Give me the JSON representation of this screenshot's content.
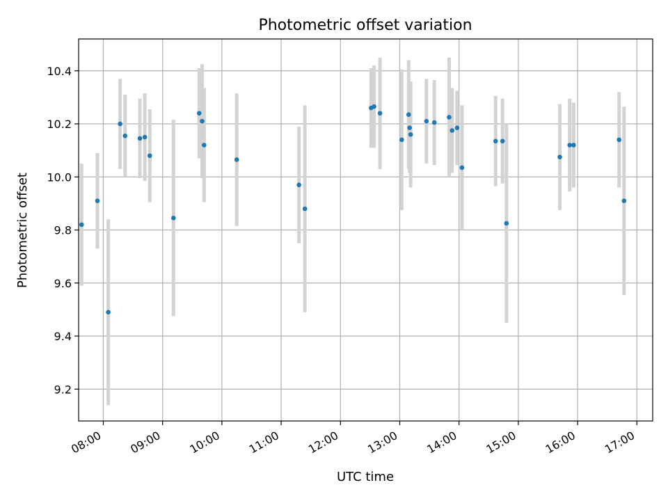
{
  "chart_data": {
    "type": "scatter",
    "title": "Photometric offset variation",
    "xlabel": "UTC time",
    "ylabel": "Photometric offset",
    "x_ticks": [
      "08:00",
      "09:00",
      "10:00",
      "11:00",
      "12:00",
      "13:00",
      "14:00",
      "15:00",
      "16:00",
      "17:00"
    ],
    "xlim": [
      "07:35",
      "17:16"
    ],
    "y_ticks": [
      "9.2",
      "9.4",
      "9.6",
      "9.8",
      "10.0",
      "10.2",
      "10.4"
    ],
    "ylim": [
      9.08,
      10.52
    ],
    "grid": true,
    "point_color": "#1f77b4",
    "errorbar_color": "#d3d3d3",
    "points": [
      {
        "x": "07:38",
        "y": 9.82,
        "err": 0.23
      },
      {
        "x": "07:54",
        "y": 9.91,
        "err": 0.18
      },
      {
        "x": "08:05",
        "y": 9.49,
        "err": 0.35
      },
      {
        "x": "08:17",
        "y": 10.2,
        "err": 0.17
      },
      {
        "x": "08:22",
        "y": 10.155,
        "err": 0.155
      },
      {
        "x": "08:37",
        "y": 10.145,
        "err": 0.15
      },
      {
        "x": "08:42",
        "y": 10.15,
        "err": 0.165
      },
      {
        "x": "08:47",
        "y": 10.08,
        "err": 0.175
      },
      {
        "x": "09:11",
        "y": 9.845,
        "err": 0.37
      },
      {
        "x": "09:37",
        "y": 10.24,
        "err": 0.17
      },
      {
        "x": "09:40",
        "y": 10.21,
        "err": 0.215
      },
      {
        "x": "09:42",
        "y": 10.12,
        "err": 0.215
      },
      {
        "x": "10:15",
        "y": 10.065,
        "err": 0.25
      },
      {
        "x": "11:18",
        "y": 9.97,
        "err": 0.22
      },
      {
        "x": "11:24",
        "y": 9.88,
        "err": 0.39
      },
      {
        "x": "12:31",
        "y": 10.26,
        "err": 0.15
      },
      {
        "x": "12:34",
        "y": 10.265,
        "err": 0.155
      },
      {
        "x": "12:40",
        "y": 10.24,
        "err": 0.21
      },
      {
        "x": "13:02",
        "y": 10.14,
        "err": 0.265
      },
      {
        "x": "13:09",
        "y": 10.235,
        "err": 0.205
      },
      {
        "x": "13:10",
        "y": 10.185,
        "err": 0.17
      },
      {
        "x": "13:11",
        "y": 10.16,
        "err": 0.2
      },
      {
        "x": "13:27",
        "y": 10.21,
        "err": 0.16
      },
      {
        "x": "13:35",
        "y": 10.205,
        "err": 0.16
      },
      {
        "x": "13:50",
        "y": 10.225,
        "err": 0.225
      },
      {
        "x": "13:53",
        "y": 10.175,
        "err": 0.16
      },
      {
        "x": "13:58",
        "y": 10.185,
        "err": 0.14
      },
      {
        "x": "14:03",
        "y": 10.035,
        "err": 0.235
      },
      {
        "x": "14:37",
        "y": 10.135,
        "err": 0.17
      },
      {
        "x": "14:44",
        "y": 10.135,
        "err": 0.16
      },
      {
        "x": "14:48",
        "y": 9.825,
        "err": 0.375
      },
      {
        "x": "15:42",
        "y": 10.075,
        "err": 0.2
      },
      {
        "x": "15:52",
        "y": 10.12,
        "err": 0.175
      },
      {
        "x": "15:56",
        "y": 10.12,
        "err": 0.16
      },
      {
        "x": "16:42",
        "y": 10.14,
        "err": 0.18
      },
      {
        "x": "16:47",
        "y": 9.91,
        "err": 0.355
      }
    ]
  }
}
